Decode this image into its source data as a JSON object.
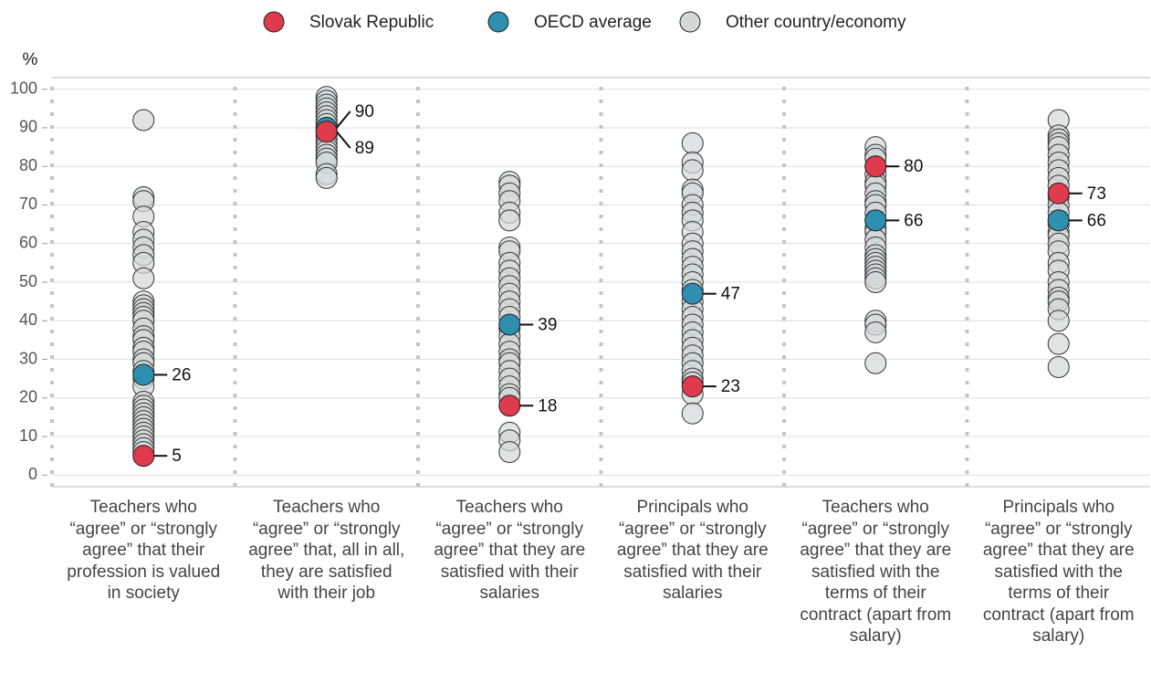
{
  "chart_data": {
    "type": "strip",
    "ylabel": "%",
    "categories": [
      "Teachers who “agree” or “strongly agree” that their profession is valued in society",
      "Teachers who “agree” or “strongly agree” that, all in all, they are satisfied with their job",
      "Teachers who “agree” or “strongly agree” that they are satisfied with their salaries",
      "Principals who “agree” or “strongly agree” that they are satisfied with their salaries",
      "Teachers who “agree” or “strongly agree” that they are satisfied with the terms of their contract (apart from salary)",
      "Principals who “agree” or “strongly agree” that they are satisfied with the terms of their contract (apart from salary)"
    ],
    "series": [
      {
        "name": "Slovak Republic",
        "color": "#e03a4e",
        "values": [
          5,
          89,
          18,
          23,
          80,
          73
        ]
      },
      {
        "name": "OECD average",
        "color": "#2e8fb0",
        "values": [
          26,
          90,
          39,
          47,
          66,
          66
        ]
      },
      {
        "name": "Other country/economy",
        "color": "#d3d8d8",
        "values": [
          [
            92,
            72,
            71,
            67,
            63,
            61,
            59,
            57,
            55,
            51,
            45,
            44,
            43,
            42,
            41,
            40,
            38,
            36,
            35,
            33,
            32,
            30,
            29,
            27,
            25,
            23,
            19,
            18,
            17,
            16,
            15,
            14,
            13,
            12,
            11,
            10,
            9,
            8,
            7,
            6
          ],
          [
            98,
            97,
            96,
            95,
            94,
            93,
            92,
            91,
            90,
            89,
            88,
            87,
            86,
            85,
            84,
            83,
            82,
            81,
            78,
            77
          ],
          [
            76,
            75,
            73,
            71,
            68,
            66,
            59,
            58,
            55,
            53,
            51,
            49,
            47,
            45,
            43,
            41,
            38,
            36,
            34,
            32,
            30,
            29,
            27,
            25,
            23,
            21,
            20,
            11,
            9,
            6
          ],
          [
            86,
            81,
            79,
            74,
            73,
            70,
            68,
            66,
            63,
            60,
            58,
            56,
            54,
            52,
            50,
            48,
            45,
            43,
            41,
            39,
            37,
            35,
            33,
            31,
            29,
            27,
            25,
            24,
            21,
            16
          ],
          [
            85,
            83,
            82,
            80,
            78,
            76,
            75,
            73,
            71,
            70,
            68,
            66,
            64,
            63,
            61,
            59,
            57,
            56,
            55,
            54,
            53,
            52,
            51,
            50,
            40,
            39,
            37,
            29
          ],
          [
            92,
            88,
            87,
            86,
            85,
            83,
            81,
            79,
            77,
            75,
            72,
            70,
            68,
            66,
            65,
            63,
            62,
            60,
            58,
            55,
            53,
            50,
            48,
            46,
            45,
            43,
            40,
            34,
            28
          ]
        ]
      }
    ],
    "ylim": [
      -3,
      103
    ],
    "yticks": [
      0,
      10,
      20,
      30,
      40,
      50,
      60,
      70,
      80,
      90,
      100
    ],
    "grid": true,
    "legend": "top"
  }
}
